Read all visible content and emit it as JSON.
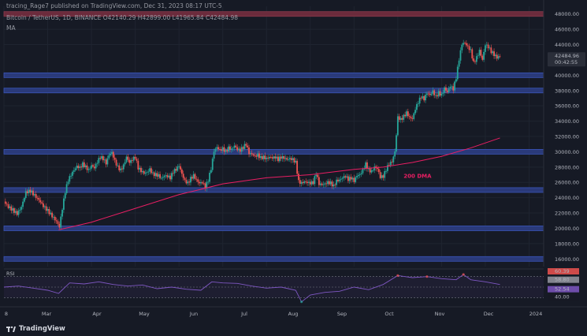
{
  "header": {
    "line1": "tracing_Rage7 published on TradingView.com, Dec 31, 2023 08:17 UTC-5",
    "line2": "Bitcoin / TetherUS, 1D, BINANCE  O42140.29  H42899.00  L41965.84  C42484.98",
    "indicator": "MA"
  },
  "brand": {
    "name": "TradingView"
  },
  "colors": {
    "background": "#161a25",
    "candle_up": "#26a69a",
    "candle_down": "#ef5350",
    "zone": "#2962ff",
    "dma": "#e91e63",
    "rsi": "#7e57c2"
  },
  "price_axis": {
    "labels": [
      "48000.00",
      "46000.00",
      "44000.00",
      "40000.00",
      "38000.00",
      "36000.00",
      "34000.00",
      "32000.00",
      "30000.00",
      "28000.00",
      "26000.00",
      "24000.00",
      "22000.00",
      "20000.00",
      "18000.00",
      "16000.00"
    ],
    "current_price": "42484.96",
    "countdown": "00:42:55"
  },
  "rsi": {
    "label": "RSI",
    "values": [
      "60.39",
      "58.80",
      "52.54",
      "40.00"
    ]
  },
  "annotations": {
    "dma_label": "200 DMA"
  },
  "x_axis": {
    "labels": [
      "8",
      "Mar",
      "Apr",
      "May",
      "Jun",
      "Jul",
      "Aug",
      "Sep",
      "Oct",
      "Nov",
      "Dec",
      "2024"
    ]
  },
  "chart_data": {
    "type": "candlestick",
    "symbol": "Bitcoin / TetherUS, 1D, BINANCE",
    "ylim": [
      15000,
      49000
    ],
    "support_resistance_levels": [
      48000,
      40000,
      38000,
      30000,
      25000,
      20000,
      16000
    ],
    "close_path": [
      [
        0,
        23500
      ],
      [
        6,
        22800
      ],
      [
        12,
        22400
      ],
      [
        18,
        21900
      ],
      [
        24,
        22800
      ],
      [
        30,
        24700
      ],
      [
        36,
        24900
      ],
      [
        42,
        24300
      ],
      [
        48,
        23700
      ],
      [
        54,
        22900
      ],
      [
        60,
        22300
      ],
      [
        66,
        21600
      ],
      [
        72,
        20900
      ],
      [
        76,
        20200
      ],
      [
        80,
        22600
      ],
      [
        84,
        24800
      ],
      [
        88,
        26300
      ],
      [
        92,
        27000
      ],
      [
        96,
        27600
      ],
      [
        100,
        28100
      ],
      [
        104,
        27900
      ],
      [
        108,
        28400
      ],
      [
        112,
        28000
      ],
      [
        116,
        27600
      ],
      [
        120,
        28200
      ],
      [
        124,
        27900
      ],
      [
        128,
        28700
      ],
      [
        132,
        29300
      ],
      [
        136,
        29100
      ],
      [
        140,
        28500
      ],
      [
        144,
        29600
      ],
      [
        148,
        29900
      ],
      [
        152,
        28800
      ],
      [
        156,
        28000
      ],
      [
        160,
        27600
      ],
      [
        164,
        28200
      ],
      [
        168,
        29300
      ],
      [
        172,
        28600
      ],
      [
        176,
        29000
      ],
      [
        180,
        29300
      ],
      [
        184,
        27900
      ],
      [
        188,
        27500
      ],
      [
        192,
        27200
      ],
      [
        196,
        27300
      ],
      [
        200,
        27700
      ],
      [
        204,
        27100
      ],
      [
        208,
        27000
      ],
      [
        212,
        26900
      ],
      [
        216,
        26500
      ],
      [
        220,
        26900
      ],
      [
        224,
        26800
      ],
      [
        228,
        26600
      ],
      [
        232,
        27400
      ],
      [
        236,
        27700
      ],
      [
        240,
        28200
      ],
      [
        244,
        27100
      ],
      [
        248,
        26200
      ],
      [
        252,
        25900
      ],
      [
        256,
        26500
      ],
      [
        260,
        26900
      ],
      [
        264,
        26300
      ],
      [
        268,
        25900
      ],
      [
        272,
        26000
      ],
      [
        276,
        25400
      ],
      [
        280,
        26300
      ],
      [
        284,
        27800
      ],
      [
        288,
        30100
      ],
      [
        292,
        30600
      ],
      [
        296,
        30200
      ],
      [
        300,
        30400
      ],
      [
        304,
        30000
      ],
      [
        308,
        30500
      ],
      [
        312,
        30300
      ],
      [
        316,
        30800
      ],
      [
        320,
        30300
      ],
      [
        324,
        30200
      ],
      [
        328,
        30600
      ],
      [
        332,
        31000
      ],
      [
        336,
        29800
      ],
      [
        340,
        29700
      ],
      [
        344,
        29400
      ],
      [
        348,
        29600
      ],
      [
        352,
        29200
      ],
      [
        356,
        29300
      ],
      [
        360,
        29100
      ],
      [
        364,
        29300
      ],
      [
        368,
        29200
      ],
      [
        372,
        29300
      ],
      [
        376,
        29000
      ],
      [
        380,
        29300
      ],
      [
        384,
        29200
      ],
      [
        388,
        29000
      ],
      [
        392,
        29100
      ],
      [
        396,
        29000
      ],
      [
        400,
        28600
      ],
      [
        404,
        26100
      ],
      [
        408,
        25900
      ],
      [
        412,
        26100
      ],
      [
        416,
        26000
      ],
      [
        420,
        25900
      ],
      [
        424,
        26000
      ],
      [
        428,
        27200
      ],
      [
        432,
        25800
      ],
      [
        436,
        25700
      ],
      [
        440,
        25800
      ],
      [
        444,
        26000
      ],
      [
        448,
        25900
      ],
      [
        452,
        25500
      ],
      [
        456,
        26200
      ],
      [
        460,
        26300
      ],
      [
        464,
        26600
      ],
      [
        468,
        26800
      ],
      [
        472,
        26400
      ],
      [
        476,
        26600
      ],
      [
        480,
        26200
      ],
      [
        484,
        26900
      ],
      [
        488,
        27000
      ],
      [
        492,
        27600
      ],
      [
        496,
        28400
      ],
      [
        500,
        27600
      ],
      [
        504,
        27400
      ],
      [
        508,
        28000
      ],
      [
        512,
        27800
      ],
      [
        516,
        26700
      ],
      [
        520,
        26800
      ],
      [
        524,
        27700
      ],
      [
        528,
        28400
      ],
      [
        532,
        28700
      ],
      [
        536,
        30000
      ],
      [
        540,
        34500
      ],
      [
        544,
        34200
      ],
      [
        548,
        34600
      ],
      [
        552,
        35100
      ],
      [
        556,
        34500
      ],
      [
        560,
        34300
      ],
      [
        564,
        35600
      ],
      [
        568,
        36500
      ],
      [
        572,
        37200
      ],
      [
        576,
        36900
      ],
      [
        580,
        37700
      ],
      [
        584,
        37400
      ],
      [
        588,
        37900
      ],
      [
        592,
        37200
      ],
      [
        596,
        37700
      ],
      [
        600,
        37400
      ],
      [
        604,
        38300
      ],
      [
        608,
        37800
      ],
      [
        612,
        38600
      ],
      [
        616,
        38200
      ],
      [
        620,
        39700
      ],
      [
        624,
        42100
      ],
      [
        628,
        44100
      ],
      [
        632,
        44200
      ],
      [
        636,
        43700
      ],
      [
        640,
        43200
      ],
      [
        644,
        41600
      ],
      [
        648,
        42300
      ],
      [
        652,
        43200
      ],
      [
        656,
        42000
      ],
      [
        660,
        44000
      ],
      [
        664,
        43700
      ],
      [
        668,
        43100
      ],
      [
        672,
        42700
      ],
      [
        676,
        42300
      ],
      [
        680,
        42500
      ]
    ],
    "dma_200": [
      [
        75,
        19800
      ],
      [
        120,
        20800
      ],
      [
        180,
        22600
      ],
      [
        240,
        24400
      ],
      [
        300,
        25800
      ],
      [
        360,
        26600
      ],
      [
        420,
        27000
      ],
      [
        480,
        27700
      ],
      [
        520,
        28000
      ],
      [
        560,
        28600
      ],
      [
        600,
        29400
      ],
      [
        640,
        30500
      ],
      [
        680,
        31800
      ]
    ],
    "rsi_series": [
      [
        0,
        50
      ],
      [
        20,
        52
      ],
      [
        40,
        48
      ],
      [
        60,
        44
      ],
      [
        75,
        38
      ],
      [
        90,
        58
      ],
      [
        110,
        56
      ],
      [
        130,
        60
      ],
      [
        150,
        55
      ],
      [
        170,
        52
      ],
      [
        190,
        54
      ],
      [
        210,
        47
      ],
      [
        230,
        50
      ],
      [
        250,
        46
      ],
      [
        270,
        44
      ],
      [
        285,
        60
      ],
      [
        300,
        58
      ],
      [
        320,
        57
      ],
      [
        340,
        52
      ],
      [
        360,
        48
      ],
      [
        380,
        50
      ],
      [
        400,
        44
      ],
      [
        408,
        22
      ],
      [
        420,
        35
      ],
      [
        440,
        40
      ],
      [
        460,
        42
      ],
      [
        480,
        50
      ],
      [
        500,
        45
      ],
      [
        520,
        55
      ],
      [
        540,
        72
      ],
      [
        560,
        68
      ],
      [
        580,
        70
      ],
      [
        600,
        66
      ],
      [
        620,
        64
      ],
      [
        630,
        74
      ],
      [
        640,
        64
      ],
      [
        660,
        60
      ],
      [
        680,
        55
      ]
    ],
    "rsi_ylim": [
      20,
      80
    ]
  }
}
